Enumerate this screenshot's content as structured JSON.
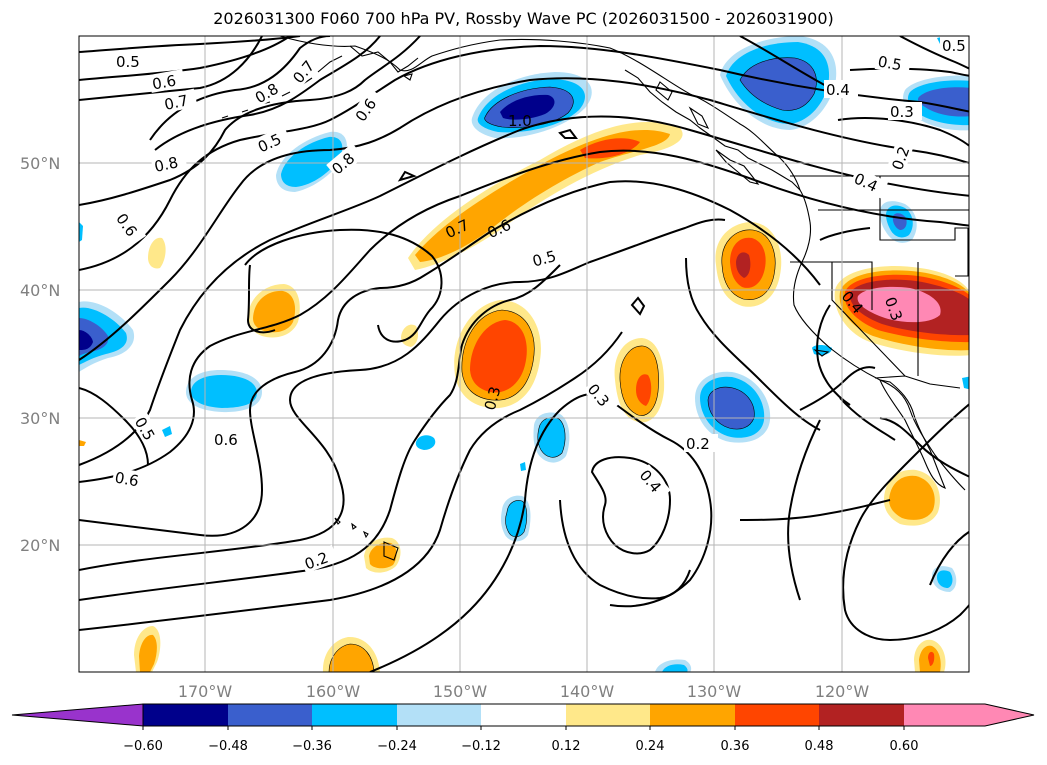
{
  "title": "2026031300 F060 700 hPa PV, Rossby Wave PC (2026031500 - 2026031900)",
  "lat_axis": {
    "labels": [
      "50°N",
      "40°N",
      "30°N",
      "20°N"
    ]
  },
  "lon_axis": {
    "labels": [
      "170°W",
      "160°W",
      "150°W",
      "140°W",
      "130°W",
      "120°W"
    ]
  },
  "contour_labels": [
    "0.5",
    "0.6",
    "0.7",
    "0.8",
    "0.7",
    "0.6",
    "0.5",
    "0.8",
    "0.8",
    "1.0",
    "0.6",
    "0.7",
    "0.6",
    "0.5",
    "0.5",
    "0.4",
    "0.3",
    "0.2",
    "0.4",
    "0.4",
    "0.3",
    "0.6",
    "0.5",
    "0.6",
    "0.6",
    "0.3",
    "0.3",
    "0.4",
    "0.2",
    "0.2",
    "0.5"
  ],
  "colorbar": {
    "ticks": [
      "−0.60",
      "−0.48",
      "−0.36",
      "−0.24",
      "−0.12",
      "0.12",
      "0.24",
      "0.36",
      "0.48",
      "0.60"
    ],
    "colors": [
      "#9933cc",
      "#00008b",
      "#3a5fcd",
      "#00bfff",
      "#b3e0f7",
      "#ffffff",
      "#ffe88a",
      "#ffa500",
      "#ff4500",
      "#b22222",
      "#ff88b4",
      "#ff88b4"
    ]
  },
  "colors": {
    "neg_strong": "#3a5fcd",
    "neg_mid": "#00bfff",
    "neg_weak": "#b3e0f7",
    "pos_weak": "#ffe88a",
    "pos_mid": "#ffa500",
    "pos_strong": "#ff4500",
    "pos_very": "#b22222",
    "pos_max": "#ff88b4"
  }
}
